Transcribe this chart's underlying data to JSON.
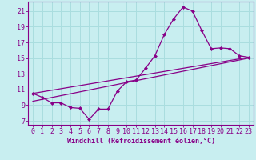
{
  "title": "",
  "xlabel": "Windchill (Refroidissement éolien,°C)",
  "bg_color": "#c8eef0",
  "grid_color": "#aadddf",
  "line_color": "#880088",
  "x_ticks": [
    0,
    1,
    2,
    3,
    4,
    5,
    6,
    7,
    8,
    9,
    10,
    11,
    12,
    13,
    14,
    15,
    16,
    17,
    18,
    19,
    20,
    21,
    22,
    23
  ],
  "y_ticks": [
    7,
    9,
    11,
    13,
    15,
    17,
    19,
    21
  ],
  "xlim": [
    -0.5,
    23.5
  ],
  "ylim": [
    6.5,
    22.2
  ],
  "main_x": [
    0,
    1,
    2,
    3,
    4,
    5,
    6,
    7,
    8,
    9,
    10,
    11,
    12,
    13,
    14,
    15,
    16,
    17,
    18,
    19,
    20,
    21,
    22,
    23
  ],
  "main_y": [
    10.5,
    10.0,
    9.3,
    9.3,
    8.7,
    8.6,
    7.2,
    8.5,
    8.5,
    10.8,
    12.0,
    12.2,
    13.7,
    15.3,
    18.0,
    20.0,
    21.5,
    21.0,
    18.5,
    16.2,
    16.3,
    16.2,
    15.3,
    15.1
  ],
  "line2_x": [
    0,
    23
  ],
  "line2_y": [
    10.5,
    15.1
  ],
  "line3_x": [
    0,
    23
  ],
  "line3_y": [
    9.5,
    15.0
  ],
  "tick_fontsize": 6,
  "xlabel_fontsize": 6
}
